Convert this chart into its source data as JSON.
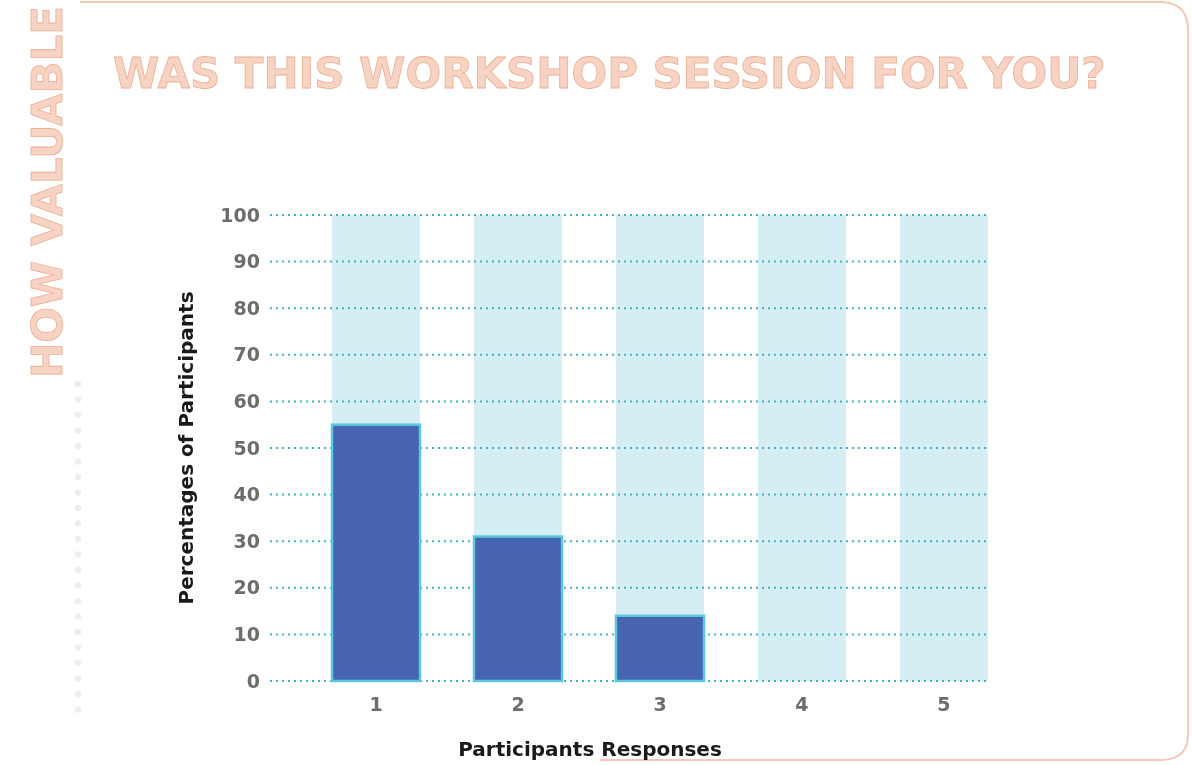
{
  "chart_data": {
    "type": "bar",
    "title": "HOW VALUABLE",
    "subtitle": "WAS THIS WORKSHOP SESSION FOR YOU?",
    "xlabel": "Participants Responses",
    "ylabel": "Percentages of Participants",
    "categories": [
      "1",
      "2",
      "3",
      "4",
      "5"
    ],
    "values": [
      55,
      31,
      14,
      0,
      0
    ],
    "color": "#4664b0",
    "ylim": [
      0,
      100
    ],
    "yticks": [
      0,
      10,
      20,
      30,
      40,
      50,
      60,
      70,
      80,
      90,
      100
    ],
    "grid": "y",
    "line_style": "dotted",
    "bands": [
      {
        "axis": "x",
        "from": "1",
        "to": "1",
        "color": "#d5eef4"
      },
      {
        "axis": "x",
        "from": "2",
        "to": "2",
        "color": "#d5eef4"
      },
      {
        "axis": "x",
        "from": "3",
        "to": "3",
        "color": "#d5eef4"
      },
      {
        "axis": "x",
        "from": "4",
        "to": "4",
        "color": "#d5eef4"
      },
      {
        "axis": "x",
        "from": "5",
        "to": "5",
        "color": "#d5eef4"
      }
    ]
  }
}
